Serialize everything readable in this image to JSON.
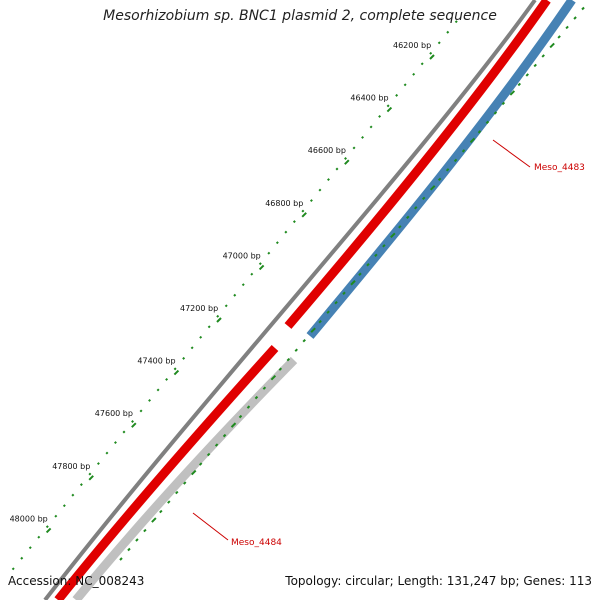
{
  "title": "Mesorhizobium sp. BNC1 plasmid 2, complete sequence",
  "footer": {
    "accession_label": "Accession: NC_008243",
    "summary": "Topology: circular; Length: 131,247 bp; Genes: 113"
  },
  "colors": {
    "backbone": "#808080",
    "gene_red": "#e00000",
    "gene_blue": "#4682b4",
    "gene_gray": "#c0c0c0",
    "tick_green": "#1f8a1f",
    "label_red": "#cc0000"
  },
  "ticks": [
    {
      "label": "46200 bp"
    },
    {
      "label": "46400 bp"
    },
    {
      "label": "46600 bp"
    },
    {
      "label": "46800 bp"
    },
    {
      "label": "47000 bp"
    },
    {
      "label": "47200 bp"
    },
    {
      "label": "47400 bp"
    },
    {
      "label": "47600 bp"
    },
    {
      "label": "47800 bp"
    },
    {
      "label": "48000 bp"
    }
  ],
  "genes": [
    {
      "name": "Meso_4483",
      "strand": "reverse",
      "color_key": "gene_blue"
    },
    {
      "name": "Meso_4484",
      "strand": "reverse",
      "color_key": "gene_gray"
    }
  ]
}
